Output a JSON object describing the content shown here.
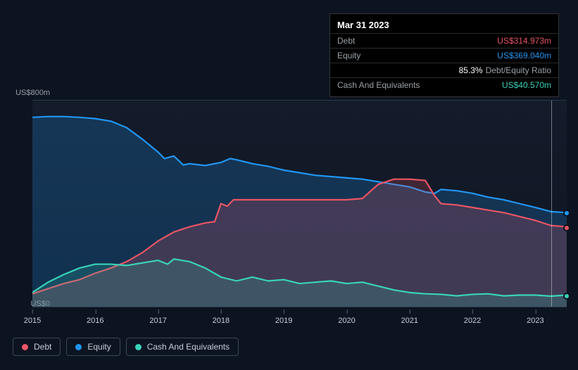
{
  "tooltip": {
    "date": "Mar 31 2023",
    "rows": [
      {
        "label": "Debt",
        "value": "US$314.973m",
        "color": "#e95565"
      },
      {
        "label": "Equity",
        "value": "US$369.040m",
        "color": "#2196f3"
      },
      {
        "label": "",
        "ratio_value": "85.3%",
        "ratio_label": "Debt/Equity Ratio"
      },
      {
        "label": "Cash And Equivalents",
        "value": "US$40.570m",
        "color": "#39d3b9"
      }
    ]
  },
  "chart": {
    "type": "area",
    "x_start_year": 2015,
    "x_end_year": 2023.5,
    "x_ticks": [
      2015,
      2016,
      2017,
      2018,
      2019,
      2020,
      2021,
      2022,
      2023
    ],
    "y_min": 0,
    "y_max": 800,
    "y_label_top": "US$800m",
    "y_label_bottom": "US$0",
    "background_color": "#0d1421",
    "grid_border_color": "#2a3548",
    "cursor_x_year": 2023.25,
    "series": [
      {
        "key": "equity",
        "name": "Equity",
        "color": "#2196f3",
        "fill_opacity": 0.22,
        "data": [
          [
            2015.0,
            735
          ],
          [
            2015.25,
            738
          ],
          [
            2015.5,
            738
          ],
          [
            2015.75,
            735
          ],
          [
            2016.0,
            730
          ],
          [
            2016.25,
            720
          ],
          [
            2016.5,
            695
          ],
          [
            2016.75,
            650
          ],
          [
            2017.0,
            600
          ],
          [
            2017.1,
            575
          ],
          [
            2017.25,
            585
          ],
          [
            2017.4,
            550
          ],
          [
            2017.5,
            555
          ],
          [
            2017.75,
            548
          ],
          [
            2018.0,
            560
          ],
          [
            2018.15,
            575
          ],
          [
            2018.25,
            570
          ],
          [
            2018.5,
            555
          ],
          [
            2018.75,
            545
          ],
          [
            2019.0,
            530
          ],
          [
            2019.5,
            510
          ],
          [
            2020.0,
            500
          ],
          [
            2020.25,
            495
          ],
          [
            2020.5,
            485
          ],
          [
            2020.75,
            475
          ],
          [
            2021.0,
            465
          ],
          [
            2021.25,
            445
          ],
          [
            2021.4,
            440
          ],
          [
            2021.5,
            455
          ],
          [
            2021.75,
            450
          ],
          [
            2022.0,
            440
          ],
          [
            2022.25,
            425
          ],
          [
            2022.5,
            415
          ],
          [
            2022.75,
            400
          ],
          [
            2023.0,
            385
          ],
          [
            2023.25,
            369
          ],
          [
            2023.5,
            365
          ]
        ]
      },
      {
        "key": "debt",
        "name": "Debt",
        "color": "#e95565",
        "fill_opacity": 0.22,
        "data": [
          [
            2015.0,
            50
          ],
          [
            2015.25,
            70
          ],
          [
            2015.5,
            90
          ],
          [
            2015.75,
            105
          ],
          [
            2016.0,
            130
          ],
          [
            2016.25,
            150
          ],
          [
            2016.5,
            175
          ],
          [
            2016.75,
            210
          ],
          [
            2017.0,
            255
          ],
          [
            2017.25,
            290
          ],
          [
            2017.5,
            310
          ],
          [
            2017.75,
            325
          ],
          [
            2017.9,
            330
          ],
          [
            2018.0,
            400
          ],
          [
            2018.1,
            390
          ],
          [
            2018.2,
            415
          ],
          [
            2018.5,
            415
          ],
          [
            2018.75,
            415
          ],
          [
            2019.0,
            415
          ],
          [
            2019.5,
            415
          ],
          [
            2020.0,
            415
          ],
          [
            2020.25,
            420
          ],
          [
            2020.5,
            475
          ],
          [
            2020.75,
            495
          ],
          [
            2021.0,
            495
          ],
          [
            2021.25,
            490
          ],
          [
            2021.4,
            430
          ],
          [
            2021.5,
            400
          ],
          [
            2021.75,
            395
          ],
          [
            2022.0,
            385
          ],
          [
            2022.25,
            375
          ],
          [
            2022.5,
            365
          ],
          [
            2022.75,
            350
          ],
          [
            2023.0,
            335
          ],
          [
            2023.25,
            315
          ],
          [
            2023.5,
            310
          ]
        ]
      },
      {
        "key": "cash",
        "name": "Cash And Equivalents",
        "color": "#39d3b9",
        "fill_opacity": 0.18,
        "data": [
          [
            2015.0,
            55
          ],
          [
            2015.25,
            95
          ],
          [
            2015.5,
            125
          ],
          [
            2015.75,
            150
          ],
          [
            2016.0,
            165
          ],
          [
            2016.25,
            165
          ],
          [
            2016.5,
            160
          ],
          [
            2016.75,
            170
          ],
          [
            2017.0,
            180
          ],
          [
            2017.15,
            165
          ],
          [
            2017.25,
            185
          ],
          [
            2017.5,
            175
          ],
          [
            2017.75,
            150
          ],
          [
            2018.0,
            115
          ],
          [
            2018.25,
            100
          ],
          [
            2018.5,
            115
          ],
          [
            2018.75,
            100
          ],
          [
            2019.0,
            105
          ],
          [
            2019.25,
            90
          ],
          [
            2019.5,
            95
          ],
          [
            2019.75,
            100
          ],
          [
            2020.0,
            90
          ],
          [
            2020.25,
            95
          ],
          [
            2020.5,
            80
          ],
          [
            2020.75,
            65
          ],
          [
            2021.0,
            55
          ],
          [
            2021.25,
            50
          ],
          [
            2021.5,
            48
          ],
          [
            2021.75,
            42
          ],
          [
            2022.0,
            48
          ],
          [
            2022.25,
            50
          ],
          [
            2022.5,
            42
          ],
          [
            2022.75,
            45
          ],
          [
            2023.0,
            45
          ],
          [
            2023.25,
            41
          ],
          [
            2023.5,
            45
          ]
        ]
      }
    ],
    "end_dots": [
      {
        "series": "equity",
        "year": 2023.5,
        "value": 365,
        "color": "#2196f3"
      },
      {
        "series": "debt",
        "year": 2023.5,
        "value": 310,
        "color": "#e95565"
      },
      {
        "series": "cash",
        "year": 2023.5,
        "value": 45,
        "color": "#39d3b9"
      }
    ]
  },
  "legend": [
    {
      "label": "Debt",
      "color": "#e95565"
    },
    {
      "label": "Equity",
      "color": "#2196f3"
    },
    {
      "label": "Cash And Equivalents",
      "color": "#39d3b9"
    }
  ]
}
